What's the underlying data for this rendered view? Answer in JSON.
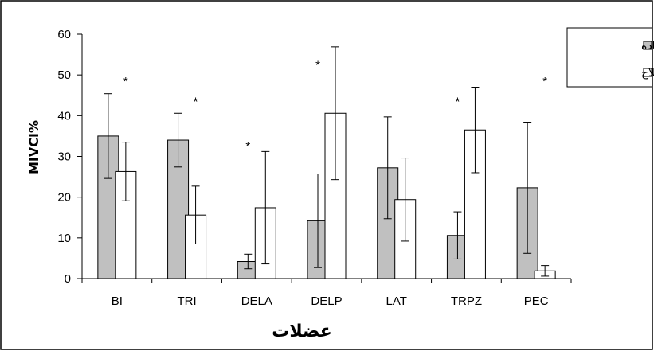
{
  "chart_data": {
    "type": "bar",
    "title": "",
    "xlabel": "عضلات",
    "ylabel": "MIVCI%",
    "ylim": [
      0,
      60
    ],
    "yticks": [
      0,
      10,
      20,
      30,
      40,
      50,
      60
    ],
    "grid": false,
    "legend_position": "top-right",
    "categories": [
      "BI",
      "TRI",
      "DELA",
      "DELP",
      "LAT",
      "TRPZ",
      "PEC"
    ],
    "series": [
      {
        "name": "ایستاده",
        "color": "#c0c0c0",
        "values": [
          35,
          34,
          4.2,
          14.2,
          27.2,
          10.6,
          22.3
        ],
        "errors": [
          10.4,
          6.6,
          1.8,
          11.5,
          12.5,
          5.8,
          16.1
        ]
      },
      {
        "name": "نشسته اصلاح",
        "color": "#ffffff",
        "values": [
          26.3,
          15.6,
          17.4,
          40.6,
          19.4,
          36.5,
          1.9
        ],
        "errors": [
          7.2,
          7.1,
          13.8,
          16.3,
          10.2,
          10.5,
          1.3
        ]
      }
    ],
    "annotations": [
      {
        "text": "*",
        "category": "BI",
        "series": 1,
        "y": 48.5
      },
      {
        "text": "*",
        "category": "TRI",
        "series": 1,
        "y": 43.5
      },
      {
        "text": "*",
        "category": "DELA",
        "series": 0,
        "y": 32.5
      },
      {
        "text": "*",
        "category": "DELP",
        "series": 0,
        "y": 52.5
      },
      {
        "text": "*",
        "category": "TRPZ",
        "series": 0,
        "y": 43.5
      },
      {
        "text": "*",
        "category": "PEC",
        "series": 1,
        "y": 48.5
      }
    ]
  }
}
